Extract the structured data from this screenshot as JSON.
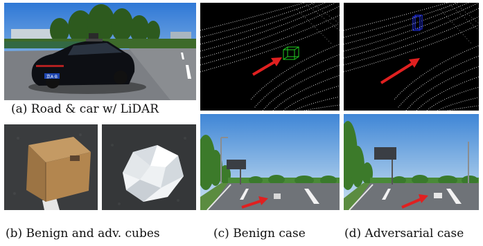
{
  "captions": {
    "a": "(a) Road & car w/ LiDAR",
    "b": "(b) Benign and adv. cubes",
    "c": "(c) Benign case",
    "d": "(d) Adversarial case"
  },
  "road_photo": {
    "license_plate": "京A·B"
  },
  "colors": {
    "lidar_bg": "#000000",
    "lidar_points": "#ffffff",
    "arrow": "#e02020",
    "benign_box": "#22cc22",
    "adversarial_box": "#2233ff",
    "sky": "#9ec6ea",
    "road": "#6f7378"
  }
}
